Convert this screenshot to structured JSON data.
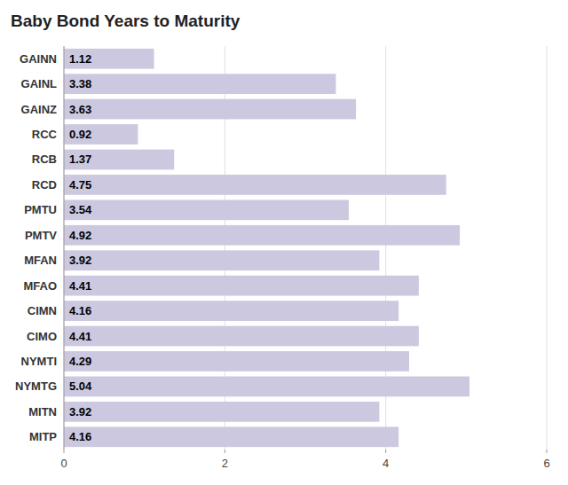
{
  "chart_data": {
    "type": "bar",
    "orientation": "horizontal",
    "title": "Baby Bond Years to Maturity",
    "categories": [
      "GAINN",
      "GAINL",
      "GAINZ",
      "RCC",
      "RCB",
      "RCD",
      "PMTU",
      "PMTV",
      "MFAN",
      "MFAO",
      "CIMN",
      "CIMO",
      "NYMTI",
      "NYMTG",
      "MITN",
      "MITP"
    ],
    "values": [
      1.12,
      3.38,
      3.63,
      0.92,
      1.37,
      4.75,
      3.54,
      4.92,
      3.92,
      4.41,
      4.16,
      4.41,
      4.29,
      5.04,
      3.92,
      4.16
    ],
    "color": "#ccc8e0",
    "xlim": [
      0,
      6
    ],
    "xticks": [
      0,
      2,
      4,
      6
    ],
    "grid": true,
    "data_labels": true
  }
}
